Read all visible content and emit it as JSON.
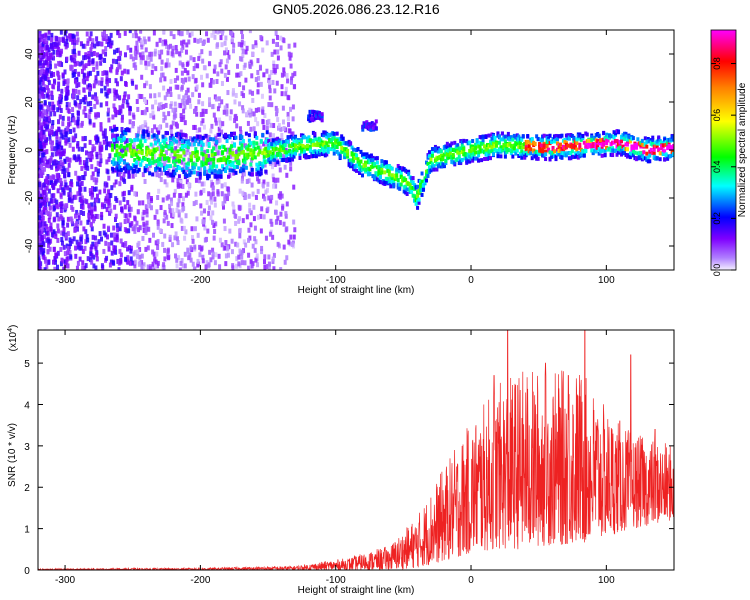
{
  "title": "GN05.2026.086.23.12.R16",
  "chart_data": [
    {
      "type": "heatmap",
      "xlabel": "Height of straight line (km)",
      "ylabel": "Frequency (Hz)",
      "xlim": [
        -320,
        150
      ],
      "ylim": [
        -50,
        50
      ],
      "x_ticks": [
        -300,
        -200,
        -100,
        0,
        100
      ],
      "x_tick_labels": [
        "-300",
        "-200",
        "-100",
        "0",
        "100"
      ],
      "y_ticks": [
        -40,
        -20,
        0,
        20,
        40
      ],
      "y_tick_labels": [
        "-40",
        "-20",
        "0",
        "20",
        "40"
      ],
      "colorbar": {
        "label": "Normalized spectral amplitude",
        "range": [
          0,
          0.93
        ],
        "ticks": [
          0,
          0.2,
          0.4,
          0.6,
          0.8
        ],
        "tick_labels": [
          "0.0",
          "0.2",
          "0.4",
          "0.6",
          "0.8"
        ],
        "colors": [
          "#f0f0ff",
          "#7f00ff",
          "#0000ff",
          "#00ffff",
          "#00ff00",
          "#ffff00",
          "#ff8000",
          "#ff0000",
          "#ff00ff"
        ]
      },
      "ridge": [
        {
          "x": -260,
          "f": 0
        },
        {
          "x": -200,
          "f": -3
        },
        {
          "x": -150,
          "f": -1
        },
        {
          "x": -120,
          "f": 2
        },
        {
          "x": -100,
          "f": 3
        },
        {
          "x": -80,
          "f": -6
        },
        {
          "x": -60,
          "f": -10
        },
        {
          "x": -45,
          "f": -14
        },
        {
          "x": -40,
          "f": -20
        },
        {
          "x": -30,
          "f": -4
        },
        {
          "x": 0,
          "f": 0
        },
        {
          "x": 20,
          "f": 2
        },
        {
          "x": 60,
          "f": 1
        },
        {
          "x": 110,
          "f": 3
        },
        {
          "x": 130,
          "f": 0
        },
        {
          "x": 150,
          "f": 1
        }
      ]
    },
    {
      "type": "line",
      "xlabel": "Height of straight line (km)",
      "ylabel": "SNR (10 * v/v)",
      "y_multiplier": "(x10",
      "y_multiplier_exp": "4",
      "y_multiplier_close": ")",
      "xlim": [
        -320,
        150
      ],
      "ylim": [
        0,
        5.8
      ],
      "x_ticks": [
        -300,
        -200,
        -100,
        0,
        100
      ],
      "x_tick_labels": [
        "-300",
        "-200",
        "-100",
        "0",
        "100"
      ],
      "y_ticks": [
        0,
        1,
        2,
        3,
        4,
        5
      ],
      "y_tick_labels": [
        "0",
        "1",
        "2",
        "3",
        "4",
        "5"
      ],
      "color": "#ee2222",
      "envelope": [
        {
          "x": -320,
          "min": 0,
          "max": 0.03
        },
        {
          "x": -200,
          "min": 0,
          "max": 0.05
        },
        {
          "x": -130,
          "min": 0,
          "max": 0.1
        },
        {
          "x": -90,
          "min": 0,
          "max": 0.3
        },
        {
          "x": -60,
          "min": 0,
          "max": 0.6
        },
        {
          "x": -40,
          "min": 0.05,
          "max": 1.3
        },
        {
          "x": -20,
          "min": 0.2,
          "max": 2.5
        },
        {
          "x": 0,
          "min": 0.4,
          "max": 3.6
        },
        {
          "x": 20,
          "min": 0.5,
          "max": 4.5
        },
        {
          "x": 40,
          "min": 0.5,
          "max": 4.9
        },
        {
          "x": 60,
          "min": 0.6,
          "max": 4.8
        },
        {
          "x": 80,
          "min": 0.6,
          "max": 4.9
        },
        {
          "x": 100,
          "min": 0.8,
          "max": 3.9
        },
        {
          "x": 120,
          "min": 1.0,
          "max": 3.3
        },
        {
          "x": 150,
          "min": 1.2,
          "max": 3.0
        }
      ],
      "peaks": [
        {
          "x": 27,
          "y": 5.8
        },
        {
          "x": 84,
          "y": 5.8
        },
        {
          "x": 118,
          "y": 5.2
        },
        {
          "x": 17,
          "y": 4.7
        },
        {
          "x": 55,
          "y": 5.0
        },
        {
          "x": 72,
          "y": 4.7
        },
        {
          "x": 110,
          "y": 3.6
        },
        {
          "x": 136,
          "y": 3.4
        }
      ]
    }
  ]
}
